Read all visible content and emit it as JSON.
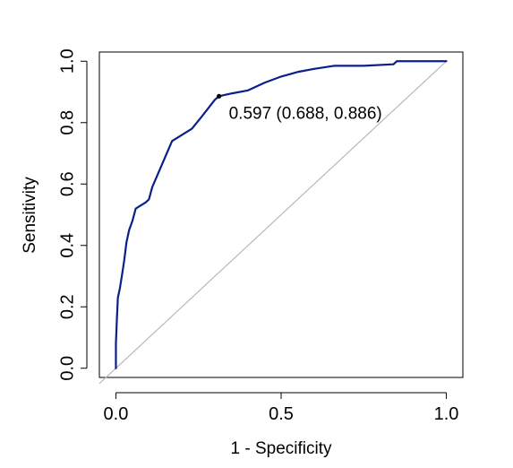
{
  "chart_data": {
    "type": "line",
    "title": "",
    "xlabel": "1 - Specificity",
    "ylabel": "Sensitivity",
    "xlim": [
      -0.05,
      1.05
    ],
    "ylim": [
      -0.03,
      1.03
    ],
    "grid": false,
    "x_ticks": [
      0.0,
      0.5,
      1.0
    ],
    "x_tick_labels": [
      "0.0",
      "0.5",
      "1.0"
    ],
    "y_ticks": [
      0.0,
      0.2,
      0.4,
      0.6,
      0.8,
      1.0
    ],
    "y_tick_labels": [
      "0.0",
      "0.2",
      "0.4",
      "0.6",
      "0.8",
      "1.0"
    ],
    "colors": {
      "roc_curve": "#0b1f8a",
      "diagonal": "#b8b8b8",
      "point": "#000000"
    },
    "series": [
      {
        "x": [
          0.0,
          0.0,
          0.003,
          0.006,
          0.012,
          0.018,
          0.025,
          0.032,
          0.04,
          0.05,
          0.06,
          0.075,
          0.09,
          0.1,
          0.11,
          0.13,
          0.15,
          0.17,
          0.2,
          0.23,
          0.26,
          0.3,
          0.312,
          0.35,
          0.4,
          0.45,
          0.5,
          0.55,
          0.6,
          0.66,
          0.75,
          0.84,
          0.85,
          0.87,
          0.9,
          0.95,
          1.0
        ],
        "y": [
          0.0,
          0.08,
          0.16,
          0.23,
          0.26,
          0.3,
          0.35,
          0.41,
          0.45,
          0.48,
          0.52,
          0.53,
          0.54,
          0.55,
          0.59,
          0.64,
          0.69,
          0.74,
          0.76,
          0.78,
          0.82,
          0.875,
          0.886,
          0.895,
          0.905,
          0.93,
          0.95,
          0.965,
          0.975,
          0.985,
          0.985,
          0.99,
          1.0,
          1.0,
          1.0,
          1.0,
          1.0
        ]
      },
      {
        "x": [
          -0.05,
          1.0
        ],
        "y": [
          -0.05,
          1.0
        ]
      }
    ],
    "annotations": [
      {
        "x": 0.312,
        "y": 0.886,
        "text": "0.597 (0.688, 0.886)"
      }
    ]
  }
}
